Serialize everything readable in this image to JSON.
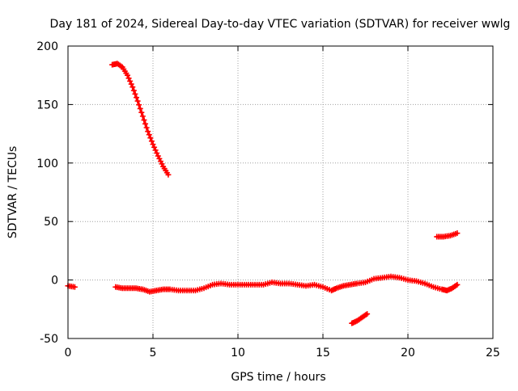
{
  "chart_data": {
    "type": "scatter",
    "title": "Day 181 of 2024, Sidereal Day-to-day VTEC variation (SDTVAR) for receiver wwlg",
    "xlabel": "GPS time / hours",
    "ylabel": "SDTVAR / TECUs",
    "xlim": [
      0,
      25
    ],
    "ylim": [
      -50,
      200
    ],
    "xticks": [
      0,
      5,
      10,
      15,
      20,
      25
    ],
    "yticks": [
      -50,
      0,
      50,
      100,
      150,
      200
    ],
    "grid": true,
    "marker": "plus",
    "series": [
      {
        "name": "SDTVAR",
        "color": "#ff0000",
        "segments": [
          [
            [
              0.0,
              -5
            ],
            [
              0.4,
              -6
            ]
          ],
          [
            [
              2.6,
              184
            ],
            [
              2.9,
              185
            ],
            [
              3.2,
              182
            ],
            [
              3.5,
              175
            ],
            [
              3.8,
              165
            ],
            [
              4.1,
              153
            ],
            [
              4.4,
              140
            ],
            [
              4.7,
              127
            ],
            [
              5.0,
              116
            ],
            [
              5.3,
              106
            ],
            [
              5.6,
              97
            ],
            [
              5.9,
              90
            ]
          ],
          [
            [
              2.8,
              -6
            ],
            [
              3.2,
              -7
            ],
            [
              3.6,
              -7
            ],
            [
              4.0,
              -7
            ],
            [
              4.4,
              -8
            ],
            [
              4.8,
              -10
            ],
            [
              5.2,
              -9
            ],
            [
              5.6,
              -8
            ],
            [
              6.0,
              -8
            ],
            [
              6.5,
              -9
            ],
            [
              7.0,
              -9
            ],
            [
              7.5,
              -9
            ],
            [
              8.0,
              -7
            ],
            [
              8.5,
              -4
            ],
            [
              9.0,
              -3
            ],
            [
              9.5,
              -4
            ],
            [
              10.0,
              -4
            ],
            [
              10.5,
              -4
            ],
            [
              11.0,
              -4
            ],
            [
              11.5,
              -4
            ],
            [
              12.0,
              -2
            ],
            [
              12.5,
              -3
            ],
            [
              13.0,
              -3
            ],
            [
              13.5,
              -4
            ],
            [
              14.0,
              -5
            ],
            [
              14.5,
              -4
            ],
            [
              15.0,
              -6
            ],
            [
              15.5,
              -9
            ],
            [
              15.8,
              -7
            ],
            [
              16.2,
              -5
            ],
            [
              16.6,
              -4
            ],
            [
              17.0,
              -3
            ],
            [
              17.5,
              -2
            ],
            [
              18.0,
              1
            ],
            [
              18.5,
              2
            ],
            [
              19.0,
              3
            ],
            [
              19.5,
              2
            ],
            [
              20.0,
              0
            ],
            [
              20.5,
              -1
            ],
            [
              21.0,
              -3
            ],
            [
              21.5,
              -6
            ],
            [
              22.0,
              -8
            ],
            [
              22.3,
              -9
            ],
            [
              22.6,
              -7
            ],
            [
              22.9,
              -4
            ]
          ],
          [
            [
              16.7,
              -37
            ],
            [
              17.0,
              -35
            ],
            [
              17.3,
              -32
            ],
            [
              17.6,
              -29
            ]
          ],
          [
            [
              21.7,
              37
            ],
            [
              22.1,
              37
            ],
            [
              22.5,
              38
            ],
            [
              22.9,
              40
            ]
          ]
        ]
      }
    ]
  }
}
